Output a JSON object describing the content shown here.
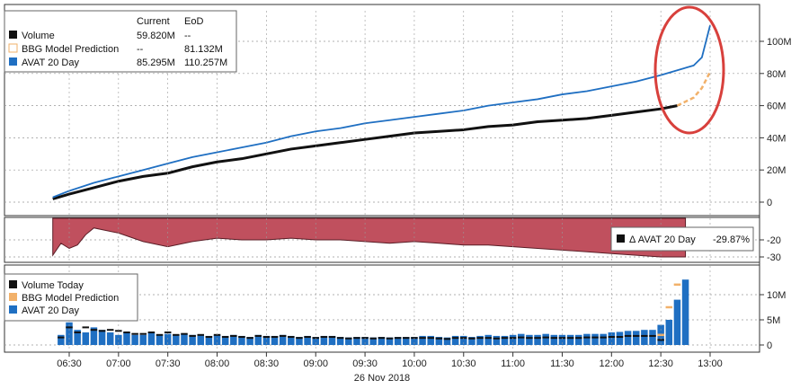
{
  "colors": {
    "volume": "#111111",
    "prediction": "#f2b16a",
    "avat": "#1f6fc2",
    "delta_fill": "#c0505e",
    "highlight": "#d8403c",
    "grid": "#999999"
  },
  "chart_data": [
    {
      "type": "line",
      "legend": {
        "placement": "top-left",
        "headers": [
          "Current",
          "EoD"
        ],
        "rows": [
          {
            "name": "Volume",
            "current": "59.820M",
            "eod": "--"
          },
          {
            "name": "BBG Model Prediction",
            "current": "--",
            "eod": "81.132M"
          },
          {
            "name": "AVAT 20 Day",
            "current": "85.295M",
            "eod": "110.257M"
          }
        ]
      },
      "y_ticks": [
        "0",
        "20M",
        "40M",
        "60M",
        "80M",
        "100M"
      ],
      "ylim": [
        0,
        115
      ],
      "x": [
        "06:20",
        "06:30",
        "06:45",
        "07:00",
        "07:15",
        "07:30",
        "07:45",
        "08:00",
        "08:15",
        "08:30",
        "08:45",
        "09:00",
        "09:15",
        "09:30",
        "09:45",
        "10:00",
        "10:15",
        "10:30",
        "10:45",
        "11:00",
        "11:15",
        "11:30",
        "11:45",
        "12:00",
        "12:15",
        "12:30",
        "12:40",
        "12:50",
        "12:55",
        "13:00"
      ],
      "series": [
        {
          "name": "Volume",
          "values": [
            2,
            5,
            9,
            13,
            16,
            18,
            22,
            25,
            27,
            30,
            33,
            35,
            37,
            39,
            41,
            43,
            44,
            45,
            47,
            48,
            50,
            51,
            52,
            54,
            56,
            58,
            60,
            null,
            null,
            null
          ]
        },
        {
          "name": "BBG Model Prediction",
          "values": [
            null,
            null,
            null,
            null,
            null,
            null,
            null,
            null,
            null,
            null,
            null,
            null,
            null,
            null,
            null,
            null,
            null,
            null,
            null,
            null,
            null,
            null,
            null,
            null,
            null,
            null,
            60,
            65,
            71,
            81
          ]
        },
        {
          "name": "AVAT 20 Day",
          "values": [
            3,
            7,
            12,
            16,
            20,
            24,
            28,
            31,
            34,
            37,
            41,
            44,
            46,
            49,
            51,
            53,
            55,
            57,
            60,
            62,
            64,
            67,
            69,
            72,
            75,
            79,
            82,
            85,
            90,
            110
          ]
        }
      ]
    },
    {
      "type": "area",
      "legend": {
        "placement": "bottom-right",
        "name": "Δ AVAT 20 Day",
        "value": "-29.87%"
      },
      "y_ticks": [
        "-20",
        "-30"
      ],
      "ylim": [
        -33,
        -5
      ],
      "x": [
        "06:20",
        "06:25",
        "06:30",
        "06:35",
        "06:40",
        "06:45",
        "07:00",
        "07:15",
        "07:30",
        "07:45",
        "08:00",
        "08:15",
        "08:30",
        "08:45",
        "09:00",
        "09:15",
        "09:30",
        "09:45",
        "10:00",
        "10:15",
        "10:30",
        "10:45",
        "11:00",
        "11:15",
        "11:30",
        "11:45",
        "12:00",
        "12:15",
        "12:30",
        "12:45"
      ],
      "series": [
        {
          "name": "Δ AVAT 20 Day",
          "values": [
            -29,
            -22,
            -25,
            -23,
            -17,
            -13,
            -16,
            -21,
            -24,
            -21,
            -19,
            -20,
            -20,
            -19,
            -20,
            -20,
            -21,
            -22,
            -21,
            -22,
            -23,
            -23,
            -24,
            -25,
            -26,
            -27,
            -28,
            -29,
            -30,
            -30
          ]
        }
      ]
    },
    {
      "type": "bar",
      "legend": {
        "placement": "top-left",
        "entries": [
          "Volume Today",
          "BBG Model Prediction",
          "AVAT 20 Day"
        ]
      },
      "y_ticks": [
        "0",
        "5M",
        "10M"
      ],
      "ylim": [
        -1,
        14
      ],
      "x_ticks": [
        "06:30",
        "07:00",
        "07:30",
        "08:00",
        "08:30",
        "09:00",
        "09:30",
        "10:00",
        "10:30",
        "11:00",
        "11:30",
        "12:00",
        "12:30",
        "13:00"
      ],
      "date_label": "26 Nov 2018",
      "categories": [
        "06:25",
        "06:30",
        "06:35",
        "06:40",
        "06:45",
        "06:50",
        "06:55",
        "07:00",
        "07:05",
        "07:10",
        "07:15",
        "07:20",
        "07:25",
        "07:30",
        "07:35",
        "07:40",
        "07:45",
        "07:50",
        "07:55",
        "08:00",
        "08:05",
        "08:10",
        "08:15",
        "08:20",
        "08:25",
        "08:30",
        "08:35",
        "08:40",
        "08:45",
        "08:50",
        "08:55",
        "09:00",
        "09:05",
        "09:10",
        "09:15",
        "09:20",
        "09:25",
        "09:30",
        "09:35",
        "09:40",
        "09:45",
        "09:50",
        "09:55",
        "10:00",
        "10:05",
        "10:10",
        "10:15",
        "10:20",
        "10:25",
        "10:30",
        "10:35",
        "10:40",
        "10:45",
        "10:50",
        "10:55",
        "11:00",
        "11:05",
        "11:10",
        "11:15",
        "11:20",
        "11:25",
        "11:30",
        "11:35",
        "11:40",
        "11:45",
        "11:50",
        "11:55",
        "12:00",
        "12:05",
        "12:10",
        "12:15",
        "12:20",
        "12:25",
        "12:30",
        "12:35",
        "12:40",
        "12:45",
        "12:50",
        "12:55",
        "13:00"
      ],
      "series": [
        {
          "name": "AVAT 20 Day",
          "values": [
            2.0,
            4.5,
            3.0,
            2.5,
            3.5,
            3.0,
            2.5,
            2.0,
            2.5,
            2.0,
            2.0,
            2.5,
            2.0,
            2.2,
            2.0,
            2.2,
            2.0,
            2.0,
            1.8,
            2.0,
            1.8,
            2.0,
            1.8,
            1.6,
            2.0,
            1.8,
            1.8,
            2.0,
            1.8,
            1.6,
            1.8,
            1.6,
            1.8,
            1.8,
            1.6,
            1.5,
            1.6,
            1.6,
            1.5,
            1.6,
            1.5,
            1.6,
            1.6,
            1.6,
            1.8,
            1.8,
            1.6,
            1.5,
            1.8,
            1.8,
            1.6,
            1.8,
            2.0,
            1.8,
            1.8,
            2.0,
            2.2,
            2.0,
            2.0,
            2.2,
            2.0,
            2.0,
            2.0,
            2.0,
            2.2,
            2.2,
            2.2,
            2.5,
            2.6,
            2.8,
            2.8,
            3.0,
            3.0,
            4.0,
            5.0,
            9.0,
            13.0,
            null,
            null,
            null
          ]
        },
        {
          "name": "Volume Today",
          "values": [
            1.5,
            3.5,
            2.5,
            3.5,
            3.0,
            2.8,
            3.0,
            2.8,
            2.5,
            2.2,
            2.2,
            2.5,
            2.0,
            2.5,
            2.0,
            2.2,
            1.8,
            2.0,
            1.6,
            2.0,
            1.6,
            1.8,
            1.6,
            1.4,
            1.8,
            1.6,
            1.6,
            1.8,
            1.6,
            1.4,
            1.6,
            1.4,
            1.6,
            1.6,
            1.4,
            1.3,
            1.4,
            1.4,
            1.3,
            1.4,
            1.3,
            1.4,
            1.4,
            1.4,
            1.4,
            1.4,
            1.3,
            1.2,
            1.4,
            1.4,
            1.3,
            1.4,
            1.4,
            1.3,
            1.4,
            1.4,
            1.5,
            1.4,
            1.4,
            1.5,
            1.4,
            1.4,
            1.4,
            1.4,
            1.5,
            1.5,
            1.5,
            1.6,
            1.6,
            1.8,
            1.8,
            1.8,
            1.8,
            1.0,
            null,
            null,
            null,
            null,
            null,
            null
          ]
        },
        {
          "name": "BBG Model Prediction",
          "values": [
            null,
            null,
            null,
            null,
            null,
            null,
            null,
            null,
            null,
            null,
            null,
            null,
            null,
            null,
            null,
            null,
            null,
            null,
            null,
            null,
            null,
            null,
            null,
            null,
            null,
            null,
            null,
            null,
            null,
            null,
            null,
            null,
            null,
            null,
            null,
            null,
            null,
            null,
            null,
            null,
            null,
            null,
            null,
            null,
            null,
            null,
            null,
            null,
            null,
            null,
            null,
            null,
            null,
            null,
            null,
            null,
            null,
            null,
            null,
            null,
            null,
            null,
            null,
            null,
            null,
            null,
            null,
            null,
            null,
            null,
            null,
            null,
            null,
            2.0,
            7.5,
            12.0,
            null,
            null,
            null,
            null
          ]
        }
      ]
    }
  ]
}
